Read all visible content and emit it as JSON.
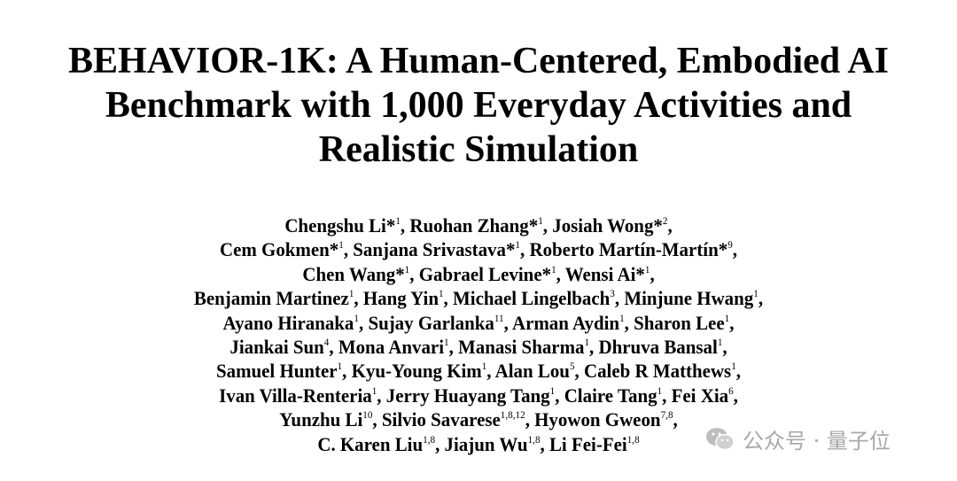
{
  "title_lines": [
    "BEHAVIOR-1K: A Human-Centered, Embodied AI",
    "Benchmark with 1,000 Everyday Activities and",
    "Realistic Simulation"
  ],
  "author_lines": [
    [
      {
        "name": "Chengshu Li*",
        "sup": "1"
      },
      {
        "name": "Ruohan Zhang*",
        "sup": "1"
      },
      {
        "name": "Josiah Wong*",
        "sup": "2"
      }
    ],
    [
      {
        "name": "Cem Gokmen*",
        "sup": "1"
      },
      {
        "name": "Sanjana Srivastava*",
        "sup": "1"
      },
      {
        "name": "Roberto Martín-Martín*",
        "sup": "9"
      }
    ],
    [
      {
        "name": "Chen Wang*",
        "sup": "1"
      },
      {
        "name": "Gabrael Levine*",
        "sup": "1"
      },
      {
        "name": "Wensi Ai*",
        "sup": "1"
      }
    ],
    [
      {
        "name": "Benjamin Martinez",
        "sup": "1"
      },
      {
        "name": "Hang Yin",
        "sup": "1"
      },
      {
        "name": "Michael Lingelbach",
        "sup": "3"
      },
      {
        "name": "Minjune Hwang",
        "sup": "1"
      }
    ],
    [
      {
        "name": "Ayano Hiranaka",
        "sup": "1"
      },
      {
        "name": "Sujay Garlanka",
        "sup": "11"
      },
      {
        "name": "Arman Aydin",
        "sup": "1"
      },
      {
        "name": "Sharon Lee",
        "sup": "1"
      }
    ],
    [
      {
        "name": "Jiankai Sun",
        "sup": "4"
      },
      {
        "name": "Mona Anvari",
        "sup": "1"
      },
      {
        "name": "Manasi Sharma",
        "sup": "1"
      },
      {
        "name": "Dhruva Bansal",
        "sup": "1"
      }
    ],
    [
      {
        "name": "Samuel Hunter",
        "sup": "1"
      },
      {
        "name": "Kyu-Young Kim",
        "sup": "1"
      },
      {
        "name": "Alan Lou",
        "sup": "5"
      },
      {
        "name": "Caleb R Matthews",
        "sup": "1"
      }
    ],
    [
      {
        "name": "Ivan Villa-Renteria",
        "sup": "1"
      },
      {
        "name": "Jerry Huayang Tang",
        "sup": "1"
      },
      {
        "name": "Claire Tang",
        "sup": "1"
      },
      {
        "name": "Fei Xia",
        "sup": "6"
      }
    ],
    [
      {
        "name": "Yunzhu Li",
        "sup": "10"
      },
      {
        "name": "Silvio Savarese",
        "sup": "1,8,12"
      },
      {
        "name": "Hyowon Gweon",
        "sup": "7,8"
      }
    ],
    [
      {
        "name": "C. Karen Liu",
        "sup": "1,8"
      },
      {
        "name": "Jiajun Wu",
        "sup": "1,8"
      },
      {
        "name": "Li Fei-Fei",
        "sup": "1,8"
      }
    ]
  ],
  "watermark": {
    "icon": "wechat-icon",
    "text": "公众号 · 量子位"
  }
}
